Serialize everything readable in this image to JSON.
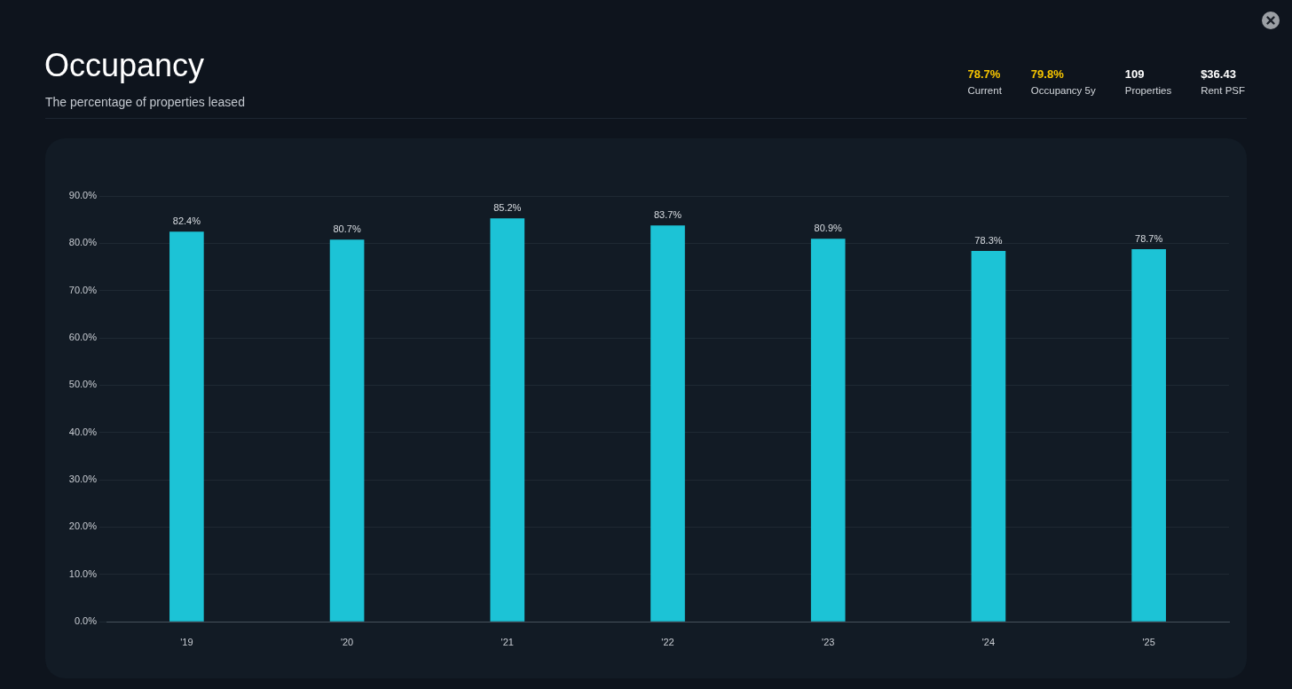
{
  "chart_data": {
    "type": "bar",
    "title": "Occupancy",
    "subtitle": "The percentage of properties leased",
    "annotations": [
      "78.7%",
      "Current",
      "79.8%",
      "Occupancy 5y",
      "109",
      "Properties",
      "$36.43",
      "Rent PSF"
    ],
    "categories": [
      "'19",
      "'20",
      "'21",
      "'22",
      "'23",
      "'24",
      "'25"
    ],
    "values": [
      82.4,
      80.7,
      85.2,
      83.7,
      80.9,
      78.3,
      78.7
    ],
    "color": "#1cc3d6",
    "value_labels": [
      "82.4%",
      "80.7%",
      "85.2%",
      "83.7%",
      "80.9%",
      "78.3%",
      "78.7%"
    ],
    "ylim": [
      0,
      90
    ],
    "yticks": [
      {
        "value": 0,
        "label": "0.0%"
      },
      {
        "value": 10,
        "label": "10.0%"
      },
      {
        "value": 20,
        "label": "20.0%"
      },
      {
        "value": 30,
        "label": "30.0%"
      },
      {
        "value": 40,
        "label": "40.0%"
      },
      {
        "value": 50,
        "label": "50.0%"
      },
      {
        "value": 60,
        "label": "60.0%"
      },
      {
        "value": 70,
        "label": "70.0%"
      },
      {
        "value": 80,
        "label": "80.0%"
      },
      {
        "value": 90,
        "label": "90.0%"
      }
    ],
    "grid": "y"
  }
}
